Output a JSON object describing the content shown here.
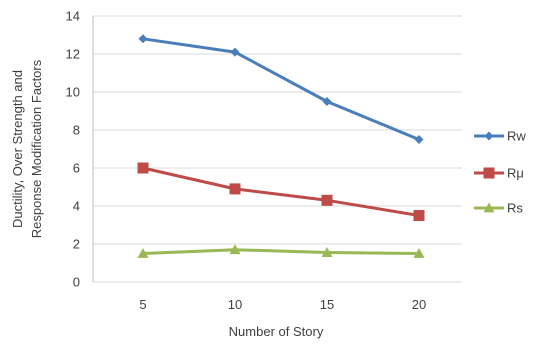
{
  "chart_data": {
    "type": "line",
    "title": "",
    "xlabel": "Number of Story",
    "ylabel_lines": [
      "Ductility, Over Strength and",
      "Response Modification Factors"
    ],
    "x": [
      5,
      10,
      15,
      20
    ],
    "ylim": [
      0,
      14
    ],
    "yticks": [
      0,
      2,
      4,
      6,
      8,
      10,
      12,
      14
    ],
    "grid": true,
    "legend_position": "right",
    "series": [
      {
        "name": "Rw",
        "values": [
          12.8,
          12.1,
          9.5,
          7.5
        ],
        "color": "#4a7ebb",
        "marker": "diamond"
      },
      {
        "name": "Rμ",
        "values": [
          6.0,
          4.9,
          4.3,
          3.5
        ],
        "color": "#be4b48",
        "marker": "square"
      },
      {
        "name": "Rs",
        "values": [
          1.5,
          1.7,
          1.55,
          1.5
        ],
        "color": "#98b954",
        "marker": "triangle"
      }
    ]
  }
}
